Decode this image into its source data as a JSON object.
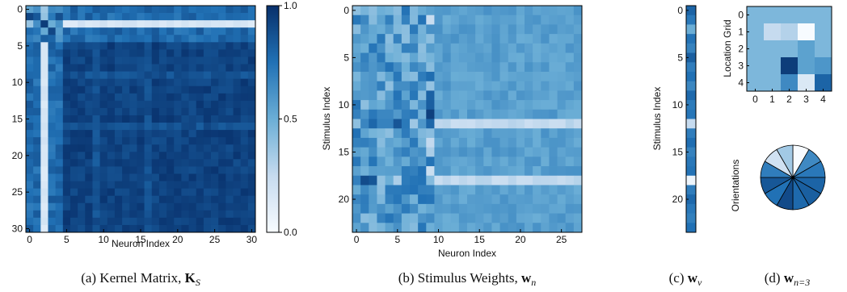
{
  "chart_data": [
    {
      "id": "kernel",
      "type": "heatmap",
      "caption": "(a) Kernel Matrix, K_S",
      "caption_prefix": "(a) Kernel Matrix, ",
      "caption_math": "K",
      "caption_sub": "S",
      "xlabel": "Neuron Index",
      "ylabel": "",
      "x_ticks": [
        0,
        5,
        10,
        15,
        20,
        25,
        30
      ],
      "y_ticks": [
        0,
        5,
        10,
        15,
        20,
        25,
        30
      ],
      "rows": 31,
      "cols": 31,
      "light_index": 2,
      "colorbar": {
        "ticks": [
          0.0,
          0.5,
          1.0
        ],
        "labels": [
          "0.0",
          "0.5",
          "1.0"
        ],
        "range": [
          0,
          1
        ]
      }
    },
    {
      "id": "stimulus",
      "type": "heatmap",
      "caption": "(b) Stimulus Weights, w_n",
      "caption_prefix": "(b) Stimulus Weights, ",
      "caption_math": "w",
      "caption_sub": "n",
      "xlabel": "Neuron Index",
      "ylabel": "Stimulus Index",
      "x_ticks": [
        0,
        5,
        10,
        15,
        20,
        25
      ],
      "y_ticks": [
        0,
        5,
        10,
        15,
        20
      ],
      "rows": 24,
      "cols": 28,
      "light_rows": [
        12,
        18
      ],
      "active_col": 9
    },
    {
      "id": "wnu",
      "type": "heatmap",
      "caption": "(c) w_ν",
      "caption_prefix": "(c) ",
      "caption_math": "w",
      "caption_sub": "ν",
      "xlabel": "",
      "ylabel": "Stimulus Index",
      "y_ticks": [
        0,
        5,
        10,
        15,
        20
      ],
      "rows": 24,
      "values": [
        0.8,
        0.72,
        0.5,
        0.74,
        0.68,
        0.82,
        0.7,
        0.75,
        0.66,
        0.78,
        0.71,
        0.73,
        0.25,
        0.7,
        0.76,
        0.68,
        0.72,
        0.74,
        0.05,
        0.7,
        0.78,
        0.72,
        0.69,
        0.75
      ]
    },
    {
      "id": "wn3",
      "type": "heatmap",
      "caption": "(d) w_{n=3}",
      "caption_prefix": "(d) ",
      "caption_math": "w",
      "caption_sub": "n=3",
      "grid": {
        "ylabel": "Location Grid",
        "x_ticks": [
          0,
          1,
          2,
          3,
          4
        ],
        "y_ticks": [
          0,
          1,
          2,
          3,
          4
        ],
        "values": [
          [
            0.45,
            0.45,
            0.45,
            0.45,
            0.45
          ],
          [
            0.45,
            0.25,
            0.3,
            0.0,
            0.45
          ],
          [
            0.45,
            0.45,
            0.45,
            0.55,
            0.45
          ],
          [
            0.45,
            0.45,
            0.95,
            0.55,
            0.6
          ],
          [
            0.45,
            0.45,
            0.65,
            0.15,
            0.8
          ]
        ]
      },
      "orientations": {
        "label": "Orientations",
        "values": [
          0.0,
          0.65,
          0.72,
          0.8,
          0.82,
          0.78,
          0.9,
          0.75,
          0.85,
          0.7,
          0.2,
          0.35
        ]
      }
    }
  ]
}
